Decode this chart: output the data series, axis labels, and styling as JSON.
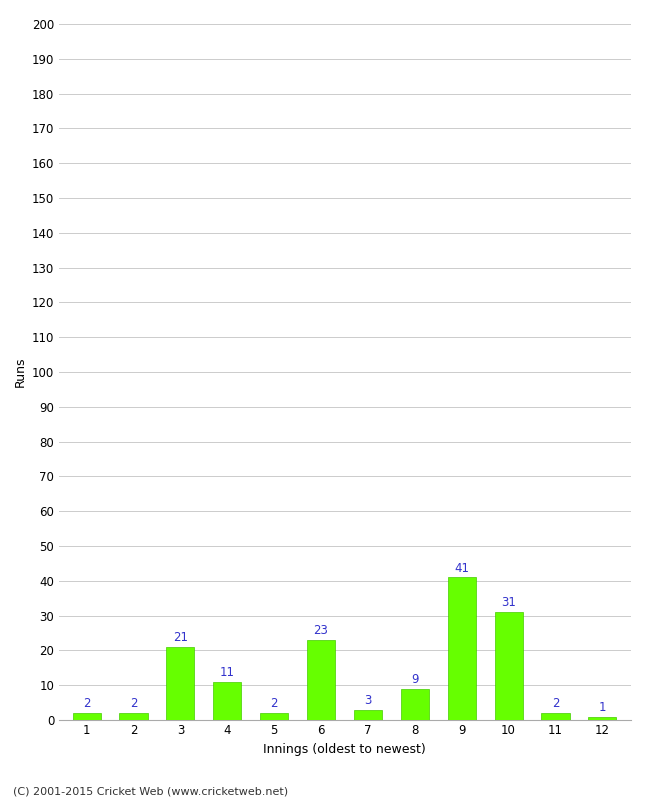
{
  "xlabel": "Innings (oldest to newest)",
  "ylabel": "Runs",
  "categories": [
    1,
    2,
    3,
    4,
    5,
    6,
    7,
    8,
    9,
    10,
    11,
    12
  ],
  "values": [
    2,
    2,
    21,
    11,
    2,
    23,
    3,
    9,
    41,
    31,
    2,
    1
  ],
  "bar_color": "#66ff00",
  "bar_edge_color": "#44cc00",
  "label_color": "#3333cc",
  "ylim": [
    0,
    200
  ],
  "background_color": "#ffffff",
  "grid_color": "#cccccc",
  "footer": "(C) 2001-2015 Cricket Web (www.cricketweb.net)",
  "label_fontsize": 8.5,
  "axis_tick_fontsize": 8.5,
  "axis_label_fontsize": 9,
  "footer_fontsize": 8
}
